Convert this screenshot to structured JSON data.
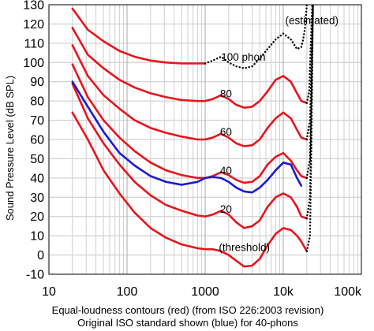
{
  "chart_data": {
    "type": "line",
    "xscale": "log",
    "xlim": [
      10,
      100000
    ],
    "ylim": [
      -10,
      130
    ],
    "grid": true,
    "ylabel": "Sound Pressure Level (dB SPL)",
    "caption_line1": "Equal-loudness contours (red) (from ISO 226:2003 revision)",
    "caption_line2": "Original ISO standard shown (blue) for 40-phons",
    "x_ticks": [
      {
        "value": 10,
        "label": "10"
      },
      {
        "value": 100,
        "label": "100"
      },
      {
        "value": 1000,
        "label": "1000"
      },
      {
        "value": 10000,
        "label": "10k"
      },
      {
        "value": 100000,
        "label": "100k"
      }
    ],
    "y_ticks": [
      {
        "value": 130,
        "label": "130"
      },
      {
        "value": 120,
        "label": "120"
      },
      {
        "value": 110,
        "label": "110"
      },
      {
        "value": 100,
        "label": "100"
      },
      {
        "value": 90,
        "label": "90"
      },
      {
        "value": 80,
        "label": "80"
      },
      {
        "value": 70,
        "label": "70"
      },
      {
        "value": 60,
        "label": "60"
      },
      {
        "value": 50,
        "label": "50"
      },
      {
        "value": 40,
        "label": "40"
      },
      {
        "value": 30,
        "label": "30"
      },
      {
        "value": 20,
        "label": "20"
      },
      {
        "value": 10,
        "label": "10"
      },
      {
        "value": 0,
        "label": "0"
      },
      {
        "value": -10,
        "label": "-10"
      }
    ],
    "series": [
      {
        "name": "100 phon",
        "color": "#e8141c",
        "style": "solid",
        "points": [
          [
            20,
            128
          ],
          [
            31.5,
            117
          ],
          [
            50,
            111
          ],
          [
            80,
            106
          ],
          [
            125,
            103
          ],
          [
            200,
            101
          ],
          [
            315,
            100
          ],
          [
            500,
            99.5
          ],
          [
            1000,
            99.5
          ]
        ]
      },
      {
        "name": "100 phon (estimated)",
        "color": "#000000",
        "style": "dotted",
        "points": [
          [
            1000,
            99.5
          ],
          [
            1250,
            101
          ],
          [
            1600,
            103
          ],
          [
            2000,
            100
          ],
          [
            2500,
            98
          ],
          [
            3150,
            97
          ],
          [
            4000,
            98
          ],
          [
            5000,
            102
          ],
          [
            6300,
            107
          ],
          [
            8000,
            112
          ],
          [
            10000,
            115
          ],
          [
            12500,
            112
          ],
          [
            15000,
            107
          ],
          [
            17000,
            108
          ],
          [
            18000,
            112
          ],
          [
            19000,
            118
          ],
          [
            20000,
            130
          ]
        ]
      },
      {
        "name": "80 phon",
        "color": "#e8141c",
        "style": "solid",
        "points": [
          [
            20,
            118
          ],
          [
            31.5,
            104
          ],
          [
            50,
            97
          ],
          [
            80,
            91
          ],
          [
            125,
            87
          ],
          [
            200,
            84
          ],
          [
            315,
            82
          ],
          [
            500,
            80.5
          ],
          [
            800,
            80
          ],
          [
            1000,
            80
          ],
          [
            1250,
            81
          ],
          [
            1600,
            83
          ],
          [
            2000,
            81
          ],
          [
            2500,
            78
          ],
          [
            3150,
            76.5
          ],
          [
            4000,
            77
          ],
          [
            5000,
            80
          ],
          [
            6300,
            85
          ],
          [
            8000,
            91
          ],
          [
            10000,
            93
          ],
          [
            12500,
            90
          ],
          [
            15000,
            84
          ],
          [
            17000,
            80
          ],
          [
            20000,
            79
          ]
        ]
      },
      {
        "name": "80 phon (estimated)",
        "color": "#000000",
        "style": "dotted",
        "points": [
          [
            20000,
            79
          ],
          [
            21500,
            85
          ],
          [
            22500,
            110
          ],
          [
            23500,
            130
          ]
        ]
      },
      {
        "name": "60 phon",
        "color": "#e8141c",
        "style": "solid",
        "points": [
          [
            20,
            109
          ],
          [
            31.5,
            93
          ],
          [
            50,
            83
          ],
          [
            80,
            76
          ],
          [
            125,
            70
          ],
          [
            200,
            66
          ],
          [
            315,
            63.5
          ],
          [
            500,
            61.5
          ],
          [
            800,
            60
          ],
          [
            1000,
            60
          ],
          [
            1250,
            61
          ],
          [
            1600,
            63
          ],
          [
            2000,
            61
          ],
          [
            2500,
            58
          ],
          [
            3150,
            56.5
          ],
          [
            4000,
            57
          ],
          [
            5000,
            60
          ],
          [
            6300,
            66
          ],
          [
            8000,
            71
          ],
          [
            10000,
            74
          ],
          [
            12500,
            71
          ],
          [
            15000,
            65
          ],
          [
            17000,
            61
          ],
          [
            20000,
            60
          ]
        ]
      },
      {
        "name": "60 phon (estimated)",
        "color": "#000000",
        "style": "dotted",
        "points": [
          [
            20000,
            60
          ],
          [
            22000,
            70
          ],
          [
            23000,
            100
          ],
          [
            24000,
            130
          ]
        ]
      },
      {
        "name": "40 phon",
        "color": "#e8141c",
        "style": "solid",
        "points": [
          [
            20,
            99
          ],
          [
            31.5,
            82
          ],
          [
            50,
            70
          ],
          [
            80,
            61
          ],
          [
            125,
            54
          ],
          [
            200,
            48
          ],
          [
            315,
            44
          ],
          [
            500,
            41.5
          ],
          [
            800,
            40
          ],
          [
            1000,
            40
          ],
          [
            1250,
            41
          ],
          [
            1600,
            43
          ],
          [
            2000,
            41.5
          ],
          [
            2500,
            39
          ],
          [
            3150,
            37.5
          ],
          [
            4000,
            38
          ],
          [
            5000,
            41
          ],
          [
            6300,
            47
          ],
          [
            8000,
            51
          ],
          [
            10000,
            53
          ],
          [
            12500,
            49
          ],
          [
            15000,
            44
          ],
          [
            17000,
            41
          ],
          [
            20000,
            40
          ]
        ]
      },
      {
        "name": "40 phon (estimated)",
        "color": "#000000",
        "style": "dotted",
        "points": [
          [
            20000,
            40
          ],
          [
            22000,
            50
          ],
          [
            23000,
            90
          ],
          [
            24000,
            130
          ]
        ]
      },
      {
        "name": "20 phon",
        "color": "#e8141c",
        "style": "solid",
        "points": [
          [
            20,
            89
          ],
          [
            31.5,
            71
          ],
          [
            50,
            58
          ],
          [
            80,
            47
          ],
          [
            125,
            38
          ],
          [
            200,
            31
          ],
          [
            315,
            26
          ],
          [
            500,
            23
          ],
          [
            800,
            20.5
          ],
          [
            1000,
            20
          ],
          [
            1250,
            21
          ],
          [
            1600,
            23
          ],
          [
            2000,
            21
          ],
          [
            2500,
            17
          ],
          [
            3150,
            14
          ],
          [
            4000,
            15
          ],
          [
            5000,
            18
          ],
          [
            6300,
            25
          ],
          [
            8000,
            30
          ],
          [
            10000,
            32
          ],
          [
            12500,
            30
          ],
          [
            15000,
            25
          ],
          [
            17000,
            20
          ],
          [
            20000,
            19
          ]
        ]
      },
      {
        "name": "20 phon (estimated)",
        "color": "#000000",
        "style": "dotted",
        "points": [
          [
            20000,
            19
          ],
          [
            22000,
            30
          ],
          [
            23000,
            80
          ],
          [
            24000,
            130
          ]
        ]
      },
      {
        "name": "threshold",
        "color": "#e8141c",
        "style": "solid",
        "points": [
          [
            20,
            74
          ],
          [
            31.5,
            60
          ],
          [
            50,
            44
          ],
          [
            80,
            32
          ],
          [
            125,
            22
          ],
          [
            200,
            14
          ],
          [
            315,
            9
          ],
          [
            500,
            5.5
          ],
          [
            800,
            3.5
          ],
          [
            1000,
            3
          ],
          [
            1250,
            3
          ],
          [
            1600,
            2
          ],
          [
            2000,
            0
          ],
          [
            2500,
            -3
          ],
          [
            3150,
            -6
          ],
          [
            4000,
            -5.5
          ],
          [
            5000,
            -2
          ],
          [
            6300,
            5
          ],
          [
            8000,
            11
          ],
          [
            10000,
            14
          ],
          [
            12500,
            13
          ],
          [
            15000,
            10
          ],
          [
            17000,
            7
          ],
          [
            20000,
            2
          ]
        ]
      },
      {
        "name": "threshold (estimated)",
        "color": "#000000",
        "style": "dotted",
        "points": [
          [
            20000,
            2
          ],
          [
            22000,
            10
          ],
          [
            23000,
            60
          ],
          [
            24000,
            130
          ]
        ]
      },
      {
        "name": "40 phon (original ISO)",
        "color": "#1a1ad6",
        "style": "solid",
        "points": [
          [
            20,
            90
          ],
          [
            31.5,
            77
          ],
          [
            50,
            64
          ],
          [
            80,
            53
          ],
          [
            125,
            46.5
          ],
          [
            200,
            41
          ],
          [
            315,
            38
          ],
          [
            500,
            36.5
          ],
          [
            800,
            38
          ],
          [
            1000,
            40
          ],
          [
            1250,
            40.5
          ],
          [
            1600,
            40
          ],
          [
            2000,
            38
          ],
          [
            2500,
            35
          ],
          [
            3150,
            33
          ],
          [
            4000,
            32.5
          ],
          [
            5000,
            35
          ],
          [
            6300,
            39
          ],
          [
            8000,
            44
          ],
          [
            10000,
            48
          ],
          [
            12500,
            47
          ],
          [
            15000,
            40
          ],
          [
            17000,
            36
          ]
        ]
      }
    ],
    "annotations": [
      {
        "text": "(estimated)",
        "x": 10600,
        "y": 120
      },
      {
        "text": "100 phon",
        "x": 1600,
        "y": 101
      },
      {
        "text": "80",
        "x": 1550,
        "y": 82
      },
      {
        "text": "60",
        "x": 1550,
        "y": 62
      },
      {
        "text": "40",
        "x": 1550,
        "y": 42
      },
      {
        "text": "20",
        "x": 1550,
        "y": 22
      },
      {
        "text": "(threshold)",
        "x": 1500,
        "y": 2
      }
    ]
  }
}
